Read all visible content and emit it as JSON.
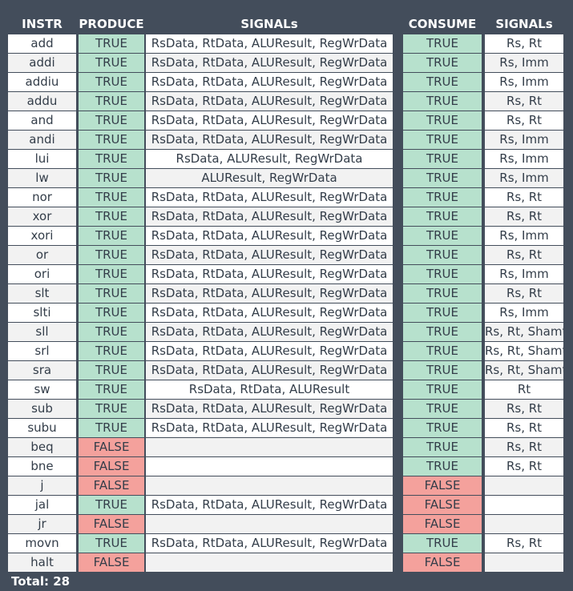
{
  "headers": {
    "instr": "INSTR",
    "produce": "PRODUCE",
    "signals_produce": "SIGNALs",
    "consume": "CONSUME",
    "signals_consume": "SIGNALs"
  },
  "rows": [
    {
      "instr": "add",
      "produce": "TRUE",
      "psig": "RsData, RtData, ALUResult, RegWrData",
      "consume": "TRUE",
      "csig": "Rs, Rt"
    },
    {
      "instr": "addi",
      "produce": "TRUE",
      "psig": "RsData, RtData, ALUResult, RegWrData",
      "consume": "TRUE",
      "csig": "Rs, Imm"
    },
    {
      "instr": "addiu",
      "produce": "TRUE",
      "psig": "RsData, RtData, ALUResult, RegWrData",
      "consume": "TRUE",
      "csig": "Rs, Imm"
    },
    {
      "instr": "addu",
      "produce": "TRUE",
      "psig": "RsData, RtData, ALUResult, RegWrData",
      "consume": "TRUE",
      "csig": "Rs, Rt"
    },
    {
      "instr": "and",
      "produce": "TRUE",
      "psig": "RsData, RtData, ALUResult, RegWrData",
      "consume": "TRUE",
      "csig": "Rs, Rt"
    },
    {
      "instr": "andi",
      "produce": "TRUE",
      "psig": "RsData, RtData, ALUResult, RegWrData",
      "consume": "TRUE",
      "csig": "Rs, Imm"
    },
    {
      "instr": "lui",
      "produce": "TRUE",
      "psig": "RsData, ALUResult, RegWrData",
      "consume": "TRUE",
      "csig": "Rs, Imm"
    },
    {
      "instr": "lw",
      "produce": "TRUE",
      "psig": "ALUResult, RegWrData",
      "consume": "TRUE",
      "csig": "Rs, Imm"
    },
    {
      "instr": "nor",
      "produce": "TRUE",
      "psig": "RsData, RtData, ALUResult, RegWrData",
      "consume": "TRUE",
      "csig": "Rs, Rt"
    },
    {
      "instr": "xor",
      "produce": "TRUE",
      "psig": "RsData, RtData, ALUResult, RegWrData",
      "consume": "TRUE",
      "csig": "Rs, Rt"
    },
    {
      "instr": "xori",
      "produce": "TRUE",
      "psig": "RsData, RtData, ALUResult, RegWrData",
      "consume": "TRUE",
      "csig": "Rs, Imm"
    },
    {
      "instr": "or",
      "produce": "TRUE",
      "psig": "RsData, RtData, ALUResult, RegWrData",
      "consume": "TRUE",
      "csig": "Rs, Rt"
    },
    {
      "instr": "ori",
      "produce": "TRUE",
      "psig": "RsData, RtData, ALUResult, RegWrData",
      "consume": "TRUE",
      "csig": "Rs, Imm"
    },
    {
      "instr": "slt",
      "produce": "TRUE",
      "psig": "RsData, RtData, ALUResult, RegWrData",
      "consume": "TRUE",
      "csig": "Rs, Rt"
    },
    {
      "instr": "slti",
      "produce": "TRUE",
      "psig": "RsData, RtData, ALUResult, RegWrData",
      "consume": "TRUE",
      "csig": "Rs, Imm"
    },
    {
      "instr": "sll",
      "produce": "TRUE",
      "psig": "RsData, RtData, ALUResult, RegWrData",
      "consume": "TRUE",
      "csig": "Rs, Rt, Shamt"
    },
    {
      "instr": "srl",
      "produce": "TRUE",
      "psig": "RsData, RtData, ALUResult, RegWrData",
      "consume": "TRUE",
      "csig": "Rs, Rt, Shamt"
    },
    {
      "instr": "sra",
      "produce": "TRUE",
      "psig": "RsData, RtData, ALUResult, RegWrData",
      "consume": "TRUE",
      "csig": "Rs, Rt, Shamt"
    },
    {
      "instr": "sw",
      "produce": "TRUE",
      "psig": "RsData, RtData, ALUResult",
      "consume": "TRUE",
      "csig": "Rt"
    },
    {
      "instr": "sub",
      "produce": "TRUE",
      "psig": "RsData, RtData, ALUResult, RegWrData",
      "consume": "TRUE",
      "csig": "Rs, Rt"
    },
    {
      "instr": "subu",
      "produce": "TRUE",
      "psig": "RsData, RtData, ALUResult, RegWrData",
      "consume": "TRUE",
      "csig": "Rs, Rt"
    },
    {
      "instr": "beq",
      "produce": "FALSE",
      "psig": "",
      "consume": "TRUE",
      "csig": "Rs, Rt"
    },
    {
      "instr": "bne",
      "produce": "FALSE",
      "psig": "",
      "consume": "TRUE",
      "csig": "Rs, Rt"
    },
    {
      "instr": "j",
      "produce": "FALSE",
      "psig": "",
      "consume": "FALSE",
      "csig": ""
    },
    {
      "instr": "jal",
      "produce": "TRUE",
      "psig": "RsData, RtData, ALUResult, RegWrData",
      "consume": "FALSE",
      "csig": ""
    },
    {
      "instr": "jr",
      "produce": "FALSE",
      "psig": "",
      "consume": "FALSE",
      "csig": ""
    },
    {
      "instr": "movn",
      "produce": "TRUE",
      "psig": "RsData, RtData, ALUResult, RegWrData",
      "consume": "TRUE",
      "csig": "Rs, Rt"
    },
    {
      "instr": "halt",
      "produce": "FALSE",
      "psig": "",
      "consume": "FALSE",
      "csig": ""
    }
  ],
  "total_label": "Total: 28",
  "colors": {
    "true_bg": "#b7e1cd",
    "false_bg": "#f4a19c",
    "frame_bg": "#434d5b",
    "header_text": "#ffffff"
  }
}
